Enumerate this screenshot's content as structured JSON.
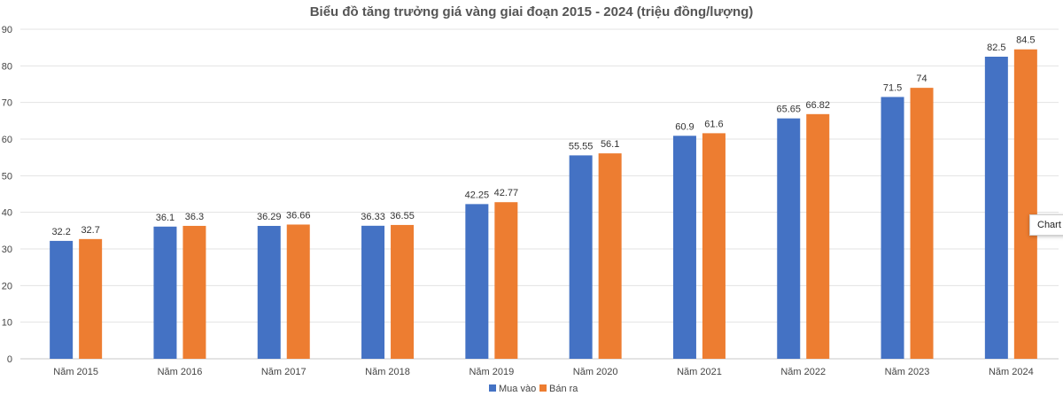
{
  "chart_data": {
    "type": "bar",
    "title": "Biểu đồ tăng trưởng giá vàng giai đoạn 2015 - 2024 (triệu đồng/lượng)",
    "categories": [
      "Năm 2015",
      "Năm 2016",
      "Năm 2017",
      "Năm 2018",
      "Năm 2019",
      "Năm 2020",
      "Năm 2021",
      "Năm 2022",
      "Năm 2023",
      "Năm 2024"
    ],
    "series": [
      {
        "name": "Mua vào",
        "color": "#4472C4",
        "values": [
          32.2,
          36.1,
          36.29,
          36.33,
          42.25,
          55.55,
          60.9,
          65.65,
          71.5,
          82.5
        ],
        "labels": [
          "32.2",
          "36.1",
          "36.29",
          "36.33",
          "42.25",
          "55.55",
          "60.9",
          "65.65",
          "71.5",
          "82.5"
        ]
      },
      {
        "name": "Bán ra",
        "color": "#ED7D31",
        "values": [
          32.7,
          36.3,
          36.66,
          36.55,
          42.77,
          56.1,
          61.6,
          66.82,
          74,
          84.5
        ],
        "labels": [
          "32.7",
          "36.3",
          "36.66",
          "36.55",
          "42.77",
          "56.1",
          "61.6",
          "66.82",
          "74",
          "84.5"
        ]
      }
    ],
    "ylim": [
      0,
      90
    ],
    "yticks": [
      "0",
      "10",
      "20",
      "30",
      "40",
      "50",
      "60",
      "70",
      "80",
      "90"
    ],
    "grid": true,
    "legend": "bottom"
  },
  "tooltip": {
    "text": "Chart Area"
  }
}
